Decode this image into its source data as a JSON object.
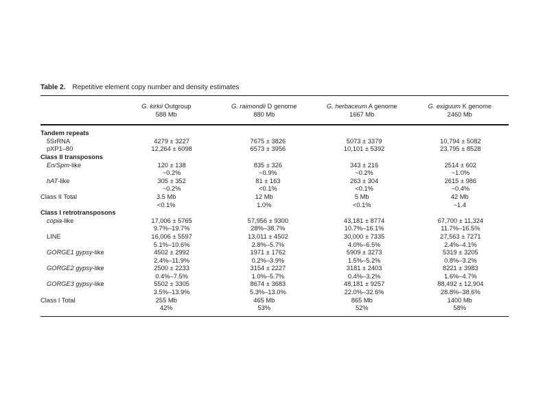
{
  "table": {
    "title_label": "Table 2.",
    "title_text": "Repetitive element copy number and density estimates",
    "header": {
      "columns": [
        {
          "name_parts": [
            {
              "t": "G. kirkii",
              "i": true
            },
            {
              "t": " Outgroup",
              "i": false
            }
          ],
          "size": "588 Mb"
        },
        {
          "name_parts": [
            {
              "t": "G. raimondii",
              "i": true
            },
            {
              "t": " D genome",
              "i": false
            }
          ],
          "size": "880 Mb"
        },
        {
          "name_parts": [
            {
              "t": "G. herbaceum",
              "i": true
            },
            {
              "t": " A genome",
              "i": false
            }
          ],
          "size": "1667 Mb"
        },
        {
          "name_parts": [
            {
              "t": "G. exiguum",
              "i": true
            },
            {
              "t": " K genome",
              "i": false
            }
          ],
          "size": "2460 Mb"
        }
      ]
    },
    "rows": [
      {
        "kind": "section",
        "label_parts": [
          {
            "t": "Tandem repeats",
            "i": false
          }
        ]
      },
      {
        "kind": "item",
        "indent": true,
        "label_parts": [
          {
            "t": "5SrRNA",
            "i": false
          }
        ],
        "cells": [
          [
            "4279 ± 3227"
          ],
          [
            "7675 ± 3826"
          ],
          [
            "5073 ± 3379"
          ],
          [
            "10,794 ± 5082"
          ]
        ]
      },
      {
        "kind": "item",
        "indent": true,
        "label_parts": [
          {
            "t": "pXP1–80",
            "i": false
          }
        ],
        "cells": [
          [
            "12,264 ± 6098"
          ],
          [
            "6573 ± 3956"
          ],
          [
            "10,101 ± 5392"
          ],
          [
            "23,795 ± 8528"
          ]
        ]
      },
      {
        "kind": "section",
        "label_parts": [
          {
            "t": "Class II transposons",
            "i": false
          }
        ]
      },
      {
        "kind": "item",
        "indent": true,
        "label_parts": [
          {
            "t": "En/Spm",
            "i": true
          },
          {
            "t": "-like",
            "i": false
          }
        ],
        "cells": [
          [
            "120 ± 138",
            "~0.2%"
          ],
          [
            "835 ± 326",
            "~0.9%"
          ],
          [
            "343 ± 216",
            "~0.2%"
          ],
          [
            "2514 ± 602",
            "~1.0%"
          ]
        ]
      },
      {
        "kind": "item",
        "indent": true,
        "label_parts": [
          {
            "t": "hAT",
            "i": true
          },
          {
            "t": "-like",
            "i": false
          }
        ],
        "cells": [
          [
            "305 ± 352",
            "~0.2%"
          ],
          [
            "81 ± 163",
            "<0.1%"
          ],
          [
            "263 ± 304",
            "<0.1%"
          ],
          [
            "2615 ± 986",
            "~0.4%"
          ]
        ]
      },
      {
        "kind": "total",
        "indent": false,
        "label_parts": [
          {
            "t": "Class II Total",
            "i": false
          }
        ],
        "cells": [
          [
            "3.5 Mb",
            "<0.1%"
          ],
          [
            "12 Mb",
            "1.0%"
          ],
          [
            "5 Mb",
            "<0.1%"
          ],
          [
            "42 Mb",
            "~1.4"
          ]
        ]
      },
      {
        "kind": "section",
        "label_parts": [
          {
            "t": "Class I retrotransposons",
            "i": false
          }
        ]
      },
      {
        "kind": "item",
        "indent": true,
        "label_parts": [
          {
            "t": "copia",
            "i": true
          },
          {
            "t": "-like",
            "i": false
          }
        ],
        "cells": [
          [
            "17,006 ± 5765",
            "9.7%–19.7%"
          ],
          [
            "57,956 ± 9300",
            "28%–38.7%"
          ],
          [
            "43,181 ± 8774",
            "10.7%–16.1%"
          ],
          [
            "67,700 ± 11,324",
            "11.7%–16.5%"
          ]
        ]
      },
      {
        "kind": "item",
        "indent": true,
        "label_parts": [
          {
            "t": "LINE",
            "i": false
          }
        ],
        "cells": [
          [
            "16,006 ± 5597",
            "5.1%–10.6%"
          ],
          [
            "13,011 ± 4502",
            "2.8%–5.7%"
          ],
          [
            "30,000 ± 7335",
            "4.0%–6.5%"
          ],
          [
            "27,563 ± 7271",
            "2.4%–4.1%"
          ]
        ]
      },
      {
        "kind": "item",
        "indent": true,
        "label_parts": [
          {
            "t": "GORGE1 gypsy",
            "i": true
          },
          {
            "t": "-like",
            "i": false
          }
        ],
        "cells": [
          [
            "4502 ± 2992",
            "2.4%–11.9%"
          ],
          [
            "1971 ± 1762",
            "0.2%–3.9%"
          ],
          [
            "5909 ± 3273",
            "1.5%–5.2%"
          ],
          [
            "5319 ± 3205",
            "0.8%–3.2%"
          ]
        ]
      },
      {
        "kind": "item",
        "indent": true,
        "label_parts": [
          {
            "t": "GORGE2 gypsy",
            "i": true
          },
          {
            "t": "-like",
            "i": false
          }
        ],
        "cells": [
          [
            "2500 ± 2233",
            "0.4%–7.5%"
          ],
          [
            "3154 ± 2227",
            "1.0%–5.7%"
          ],
          [
            "3181 ± 2403",
            "0.4%–3.2%"
          ],
          [
            "8221 ± 3983",
            "1.6%–4.7%"
          ]
        ]
      },
      {
        "kind": "item",
        "indent": true,
        "label_parts": [
          {
            "t": "GORGE3 gypsy",
            "i": true
          },
          {
            "t": "-like",
            "i": false
          }
        ],
        "cells": [
          [
            "5502 ± 3305",
            "3.5%–13.9%"
          ],
          [
            "8674 ± 3683",
            "5.3%–13.0%"
          ],
          [
            "48,181 ± 9257",
            "22.0%–32.6%"
          ],
          [
            "88,492 ± 12,904",
            "28.8%–38.6%"
          ]
        ]
      },
      {
        "kind": "total",
        "indent": false,
        "label_parts": [
          {
            "t": "Class I Total",
            "i": false
          }
        ],
        "cells": [
          [
            "255 Mb",
            "42%"
          ],
          [
            "465 Mb",
            "53%"
          ],
          [
            "865 Mb",
            "52%"
          ],
          [
            "1400 Mb",
            "58%"
          ]
        ]
      }
    ]
  },
  "colors": {
    "text": "#1e1e1e",
    "rule": "#161616",
    "background": "#ffffff"
  }
}
